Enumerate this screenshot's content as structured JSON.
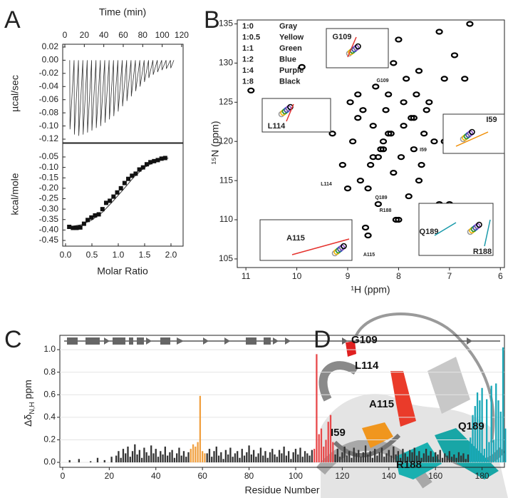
{
  "panels": [
    "A",
    "B",
    "C",
    "D"
  ],
  "structure_labels": [
    "G109",
    "L114",
    "A115",
    "I59",
    "Q189",
    "R188"
  ],
  "chart_data": [
    {
      "type": "line",
      "xlabel": "Time (min)",
      "ylabel": "µcal/sec",
      "color": "#333333",
      "xlim": [
        -2.2,
        121.5
      ],
      "xticks": [
        0,
        20,
        40,
        60,
        80,
        100,
        120
      ],
      "ylim": [
        -0.1254,
        0.0243
      ],
      "yticks": [
        {
          "value": 0.02,
          "label": "0.02"
        },
        {
          "value": 0,
          "label": "0.00"
        },
        {
          "value": -0.02,
          "label": "-0.02"
        },
        {
          "value": -0.04,
          "label": "-0.04"
        },
        {
          "value": -0.06,
          "label": "-0.06"
        },
        {
          "value": -0.08,
          "label": "-0.08"
        },
        {
          "value": -0.1,
          "label": "-0.10"
        },
        {
          "value": -0.12,
          "label": "-0.12"
        }
      ],
      "x": [
        5,
        5.3,
        9.5,
        9.8,
        14,
        14.3,
        18.5,
        18.8,
        23,
        23.3,
        27.5,
        27.8,
        32,
        32.3,
        36.5,
        36.8,
        41,
        41.3,
        45.5,
        45.8,
        50,
        50.3,
        54.5,
        54.8,
        59,
        59.3,
        63.5,
        63.8,
        68,
        68.3,
        72.5,
        72.8,
        77,
        77.3,
        81.5,
        81.8,
        86,
        86.3,
        90.5,
        90.8,
        95,
        95.3,
        99.5,
        99.8,
        104,
        104.3,
        108.5,
        108.8,
        112
      ],
      "values": [
        0,
        -0.105,
        0,
        -0.113,
        0,
        -0.115,
        0,
        -0.113,
        0,
        -0.11,
        0,
        -0.107,
        0,
        -0.103,
        0,
        -0.1,
        0,
        -0.095,
        0,
        -0.09,
        0,
        -0.085,
        0,
        -0.078,
        0,
        -0.07,
        0,
        -0.062,
        0,
        -0.055,
        0,
        -0.047,
        0,
        -0.04,
        0,
        -0.033,
        0,
        -0.027,
        0,
        -0.022,
        0,
        -0.018,
        0,
        -0.015,
        0,
        -0.013,
        0,
        -0.012,
        0
      ]
    },
    {
      "type": "scatter",
      "xlabel": "Molar Ratio",
      "ylabel": "kcal/mole",
      "color": "#111111",
      "xlim": [
        -0.054,
        2.23
      ],
      "xticks": [
        {
          "value": 0,
          "label": "0.0"
        },
        0.5,
        {
          "value": 1,
          "label": "1.0"
        },
        1.5,
        {
          "value": 2,
          "label": "2.0"
        }
      ],
      "ylim": [
        -0.4774,
        0.015
      ],
      "yticks": [
        -0.05,
        {
          "value": -0.1,
          "label": "-0.10"
        },
        -0.15,
        {
          "value": -0.2,
          "label": "-0.20"
        },
        -0.25,
        {
          "value": -0.3,
          "label": "-0.30"
        },
        -0.35,
        {
          "value": -0.4,
          "label": "-0.40"
        },
        -0.45
      ],
      "x": [
        0.07,
        0.14,
        0.21,
        0.28,
        0.35,
        0.42,
        0.49,
        0.56,
        0.63,
        0.7,
        0.77,
        0.84,
        0.91,
        0.98,
        1.05,
        1.12,
        1.19,
        1.26,
        1.33,
        1.4,
        1.47,
        1.54,
        1.61,
        1.68,
        1.75,
        1.82,
        1.89
      ],
      "values": [
        -0.385,
        -0.39,
        -0.39,
        -0.388,
        -0.37,
        -0.352,
        -0.34,
        -0.33,
        -0.325,
        -0.3,
        -0.27,
        -0.26,
        -0.24,
        -0.22,
        -0.2,
        -0.175,
        -0.155,
        -0.14,
        -0.13,
        -0.11,
        -0.1,
        -0.085,
        -0.075,
        -0.07,
        -0.065,
        -0.058,
        -0.055
      ],
      "fit": {
        "x": [
          0.05,
          0.3,
          0.5,
          0.7,
          0.9,
          1.1,
          1.3,
          1.5,
          1.7,
          1.95
        ],
        "values": [
          -0.385,
          -0.375,
          -0.352,
          -0.315,
          -0.262,
          -0.205,
          -0.145,
          -0.1,
          -0.072,
          -0.055
        ]
      }
    },
    {
      "type": "scatter",
      "xlabel": "¹H (ppm)",
      "ylabel": "¹⁵N (ppm)",
      "color": "#000000",
      "xlim": [
        11.17,
        5.92
      ],
      "xticks": [
        11,
        10,
        9,
        8,
        7,
        6
      ],
      "ylim": [
        103.9,
        135.5
      ],
      "yticks": [
        105,
        110,
        115,
        120,
        125,
        130,
        135
      ],
      "legend": [
        {
          "ratio": "1:0",
          "name": "Gray",
          "color": "#9a9a9a"
        },
        {
          "ratio": "1:0.5",
          "name": "Yellow",
          "color": "#f0b400"
        },
        {
          "ratio": "1:1",
          "name": "Green",
          "color": "#2a9a2a"
        },
        {
          "ratio": "1:2",
          "name": "Blue",
          "color": "#3050c0"
        },
        {
          "ratio": "1:4",
          "name": "Purple",
          "color": "#8a4fc0"
        },
        {
          "ratio": "1:8",
          "name": "Black",
          "color": "#000000"
        }
      ],
      "annotations": [
        {
          "text": "G109",
          "color": "#e5322d"
        },
        {
          "text": "I59",
          "color": "#f08c00"
        },
        {
          "text": "L114",
          "color": "#e5322d"
        },
        {
          "text": "Q189",
          "color": "#1a9aaa"
        },
        {
          "text": "R188",
          "color": "#1a9aaa"
        },
        {
          "text": "A115",
          "color": "#e5322d"
        }
      ],
      "inset_labels": [
        {
          "text": "G109",
          "color": "#e5322d"
        },
        {
          "text": "L114",
          "color": "#e5322d"
        },
        {
          "text": "I59",
          "color": "#f08c00"
        },
        {
          "text": "A115",
          "color": "#e5322d"
        },
        {
          "text": "Q189",
          "color": "#1a9aaa"
        },
        {
          "text": "R188",
          "color": "#1a9aaa"
        }
      ],
      "x": [
        8.5,
        8.3,
        8.1,
        7.9,
        7.7,
        7.5,
        8.7,
        8.9,
        9.1,
        8.2,
        8.0,
        7.8,
        7.6,
        8.4,
        8.6,
        8.8,
        7.4,
        7.2,
        8.35,
        8.15,
        7.95,
        7.75,
        8.55,
        8.45,
        8.25,
        8.05,
        7.85,
        7.65,
        9.3,
        9.5,
        7.3,
        7.1,
        8.65,
        8.75,
        8.95,
        7.55,
        7.45,
        8.1,
        8.3,
        8.5,
        6.9,
        6.7,
        7.0,
        10.9,
        9.9,
        9.6,
        8.9,
        8.0,
        7.2,
        6.6,
        9.0,
        8.2,
        7.7,
        8.6,
        7.9,
        8.4,
        7.1,
        8.8,
        7.6,
        6.8
      ],
      "values": [
        118,
        120,
        116,
        122,
        119,
        121,
        124,
        120,
        117,
        126,
        110,
        113,
        115,
        112,
        114,
        123,
        125,
        112,
        119,
        121,
        118,
        123,
        117,
        127,
        124,
        110,
        128,
        126,
        121,
        122,
        120,
        128,
        109,
        115,
        125,
        117,
        124,
        130,
        119,
        122,
        131,
        128,
        112,
        126.5,
        129.5,
        122.5,
        131.5,
        133,
        134,
        135,
        114,
        121,
        123,
        108,
        125,
        118,
        120,
        126,
        129,
        111
      ]
    },
    {
      "type": "bar",
      "xlabel": "Residue Number",
      "ylabel": "Δδ",
      "ylabel_sub": "N,H",
      "ylabel_unit": "ppm",
      "grid": true,
      "xlim": [
        -1.2,
        189.6
      ],
      "xticks": [
        0,
        20,
        40,
        60,
        80,
        100,
        120,
        140,
        160,
        180
      ],
      "ylim": [
        -0.044,
        1.127
      ],
      "yticks": [
        {
          "value": 0,
          "label": "0.0"
        },
        0.2,
        0.4,
        0.6,
        0.8,
        {
          "value": 1,
          "label": "1.0"
        }
      ],
      "series": [
        {
          "color": "#333333",
          "x": [
            3,
            7,
            12,
            15,
            18,
            21,
            23,
            24,
            25,
            26,
            27,
            28,
            29,
            30,
            31,
            32,
            33,
            34,
            35,
            36,
            37,
            38,
            39,
            40,
            41,
            42,
            43,
            44,
            45,
            46,
            47,
            48,
            49,
            50,
            51,
            52,
            53,
            54,
            62,
            63,
            64,
            65,
            66,
            67,
            68,
            69,
            70,
            71,
            72,
            73,
            74,
            75,
            76,
            77,
            78,
            79,
            80,
            81,
            82,
            83,
            84,
            85,
            86,
            87,
            88,
            89,
            90,
            91,
            92,
            93,
            94,
            95,
            96,
            97,
            98,
            99,
            100,
            101,
            102,
            103,
            104,
            105,
            106,
            107,
            117,
            118,
            119,
            120,
            121,
            122,
            123,
            124,
            125,
            126,
            127,
            128,
            129,
            130,
            131,
            132,
            133,
            134,
            135,
            136,
            137,
            138,
            139,
            140,
            141,
            142,
            143,
            144,
            145,
            146,
            147,
            148,
            149,
            150,
            151,
            152,
            153,
            154,
            155,
            156,
            157,
            158,
            159,
            160,
            161,
            162,
            163,
            164,
            165,
            166,
            167,
            168,
            169,
            170,
            171,
            172,
            173,
            174
          ],
          "values": [
            0.02,
            0.03,
            0.01,
            0.04,
            0.02,
            0.05,
            0.06,
            0.1,
            0.04,
            0.12,
            0.08,
            0.14,
            0.05,
            0.1,
            0.16,
            0.07,
            0.11,
            0.04,
            0.13,
            0.09,
            0.06,
            0.15,
            0.08,
            0.12,
            0.05,
            0.1,
            0.07,
            0.14,
            0.06,
            0.09,
            0.11,
            0.04,
            0.08,
            0.13,
            0.06,
            0.1,
            0.05,
            0.09,
            0.08,
            0.12,
            0.05,
            0.1,
            0.14,
            0.06,
            0.09,
            0.03,
            0.11,
            0.07,
            0.13,
            0.05,
            0.08,
            0.1,
            0.04,
            0.12,
            0.06,
            0.09,
            0.15,
            0.07,
            0.11,
            0.05,
            0.08,
            0.13,
            0.06,
            0.1,
            0.04,
            0.09,
            0.12,
            0.07,
            0.05,
            0.11,
            0.08,
            0.14,
            0.06,
            0.1,
            0.03,
            0.09,
            0.12,
            0.07,
            0.13,
            0.05,
            0.1,
            0.08,
            0.06,
            0.11,
            0.07,
            0.12,
            0.05,
            0.09,
            0.14,
            0.06,
            0.1,
            0.04,
            0.13,
            0.08,
            0.11,
            0.05,
            0.09,
            0.15,
            0.07,
            0.1,
            0.04,
            0.12,
            0.06,
            0.09,
            0.13,
            0.05,
            0.08,
            0.11,
            0.06,
            0.14,
            0.07,
            0.1,
            0.04,
            0.12,
            0.08,
            0.05,
            0.11,
            0.09,
            0.13,
            0.06,
            0.1,
            0.04,
            0.08,
            0.12,
            0.06,
            0.1,
            0.05,
            0.09,
            0.07,
            0.11,
            0.04,
            0.08,
            0.06,
            0.1,
            0.05,
            0.07,
            0.04,
            0.09,
            0.06,
            0.08,
            0.03,
            0.07
          ]
        },
        {
          "color": "#f0a040",
          "x": [
            55,
            56,
            57,
            58,
            59,
            60,
            61
          ],
          "values": [
            0.12,
            0.16,
            0.14,
            0.18,
            0.59,
            0.1,
            0.08
          ]
        },
        {
          "color": "#e8484a",
          "x": [
            108,
            109,
            110,
            111,
            112,
            113,
            114,
            115,
            116
          ],
          "values": [
            0.12,
            0.96,
            0.25,
            0.3,
            0.14,
            0.2,
            0.36,
            0.42,
            0.18
          ]
        },
        {
          "color": "#1aa8b8",
          "x": [
            175,
            176,
            177,
            178,
            179,
            180,
            181,
            182,
            183,
            184,
            185,
            186,
            187,
            188,
            189,
            190
          ],
          "values": [
            0.22,
            0.42,
            0.5,
            0.62,
            0.55,
            0.66,
            0.12,
            0.56,
            0.18,
            0.68,
            0.2,
            0.7,
            0.55,
            0.45,
            1.02,
            0.3
          ]
        }
      ]
    }
  ]
}
